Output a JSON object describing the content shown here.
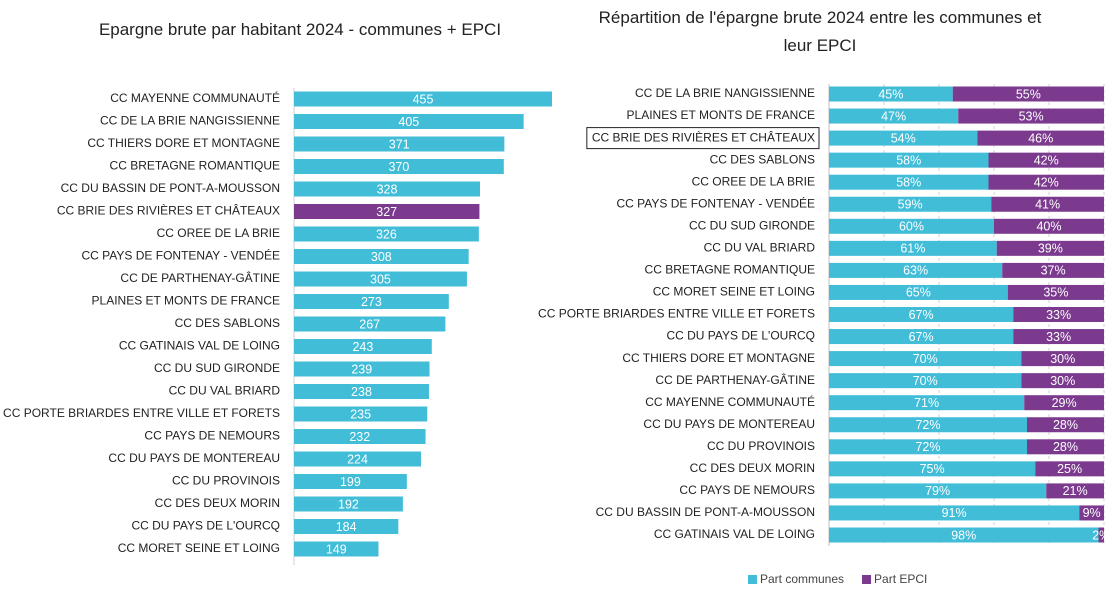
{
  "chart_data": [
    {
      "type": "bar",
      "title": "Epargne brute par habitant 2024 - communes + EPCI",
      "categories": [
        "CC MAYENNE COMMUNAUTÉ",
        "CC DE LA BRIE NANGISSIENNE",
        "CC THIERS DORE ET MONTAGNE",
        "CC BRETAGNE ROMANTIQUE",
        "CC DU BASSIN DE PONT-A-MOUSSON",
        "CC BRIE DES RIVIÈRES ET CHÂTEAUX",
        "CC OREE DE LA BRIE",
        "CC PAYS DE FONTENAY - VENDÉE",
        "CC DE PARTHENAY-GÂTINE",
        "PLAINES ET MONTS DE FRANCE",
        "CC DES SABLONS",
        "CC GATINAIS VAL DE LOING",
        "CC DU SUD GIRONDE",
        "CC DU VAL BRIARD",
        "CC PORTE BRIARDES ENTRE VILLE ET FORETS",
        "CC PAYS DE NEMOURS",
        "CC DU PAYS DE MONTEREAU",
        "CC DU PROVINOIS",
        "CC DES DEUX MORIN",
        "CC DU PAYS DE L'OURCQ",
        "CC MORET SEINE ET LOING"
      ],
      "values": [
        455,
        405,
        371,
        370,
        328,
        327,
        326,
        308,
        305,
        273,
        267,
        243,
        239,
        238,
        235,
        232,
        224,
        199,
        192,
        184,
        149
      ],
      "colors": [
        "#41bdd8",
        "#41bdd8",
        "#41bdd8",
        "#41bdd8",
        "#41bdd8",
        "#7b3a8e",
        "#41bdd8",
        "#41bdd8",
        "#41bdd8",
        "#41bdd8",
        "#41bdd8",
        "#41bdd8",
        "#41bdd8",
        "#41bdd8",
        "#41bdd8",
        "#41bdd8",
        "#41bdd8",
        "#41bdd8",
        "#41bdd8",
        "#41bdd8",
        "#41bdd8"
      ]
    },
    {
      "type": "stacked_bar",
      "title": "Répartition de l'épargne brute 2024 entre les communes et leur EPCI",
      "categories": [
        "CC DE LA BRIE NANGISSIENNE",
        "PLAINES ET MONTS DE FRANCE",
        "CC BRIE DES RIVIÈRES ET CHÂTEAUX",
        "CC DES SABLONS",
        "CC OREE DE LA BRIE",
        "CC PAYS DE FONTENAY - VENDÉE",
        "CC DU SUD GIRONDE",
        "CC DU VAL BRIARD",
        "CC BRETAGNE ROMANTIQUE",
        "CC MORET SEINE ET LOING",
        "CC PORTE BRIARDES ENTRE VILLE ET FORETS",
        "CC DU PAYS DE L'OURCQ",
        "CC THIERS DORE ET MONTAGNE",
        "CC DE PARTHENAY-GÂTINE",
        "CC MAYENNE COMMUNAUTÉ",
        "CC DU PAYS DE MONTEREAU",
        "CC DU PROVINOIS",
        "CC DES DEUX MORIN",
        "CC PAYS DE NEMOURS",
        "CC DU BASSIN DE PONT-A-MOUSSON",
        "CC GATINAIS VAL DE LOING"
      ],
      "series": [
        {
          "name": "Part communes",
          "color": "#41bdd8",
          "values": [
            45,
            47,
            54,
            58,
            58,
            59,
            60,
            61,
            63,
            65,
            67,
            67,
            70,
            70,
            71,
            72,
            72,
            75,
            79,
            91,
            98
          ],
          "value_labels": [
            "45%",
            "47%",
            "54%",
            "58%",
            "58%",
            "59%",
            "60%",
            "61%",
            "63%",
            "65%",
            "67%",
            "67%",
            "70%",
            "70%",
            "71%",
            "72%",
            "72%",
            "75%",
            "79%",
            "91%",
            "98%"
          ]
        },
        {
          "name": "Part EPCI",
          "color": "#7b3a8e",
          "values": [
            55,
            53,
            46,
            42,
            42,
            41,
            40,
            39,
            37,
            35,
            33,
            33,
            30,
            30,
            29,
            28,
            28,
            25,
            21,
            9,
            2
          ],
          "value_labels": [
            "55%",
            "53%",
            "46%",
            "42%",
            "42%",
            "41%",
            "40%",
            "39%",
            "37%",
            "35%",
            "33%",
            "33%",
            "30%",
            "30%",
            "29%",
            "28%",
            "28%",
            "25%",
            "21%",
            "9%",
            "2%"
          ]
        }
      ],
      "xlim": [
        0,
        100
      ],
      "xticks": [
        0,
        20,
        40,
        60,
        80,
        100
      ],
      "grid": true,
      "highlight_index": 2,
      "legend": "bottom"
    }
  ]
}
